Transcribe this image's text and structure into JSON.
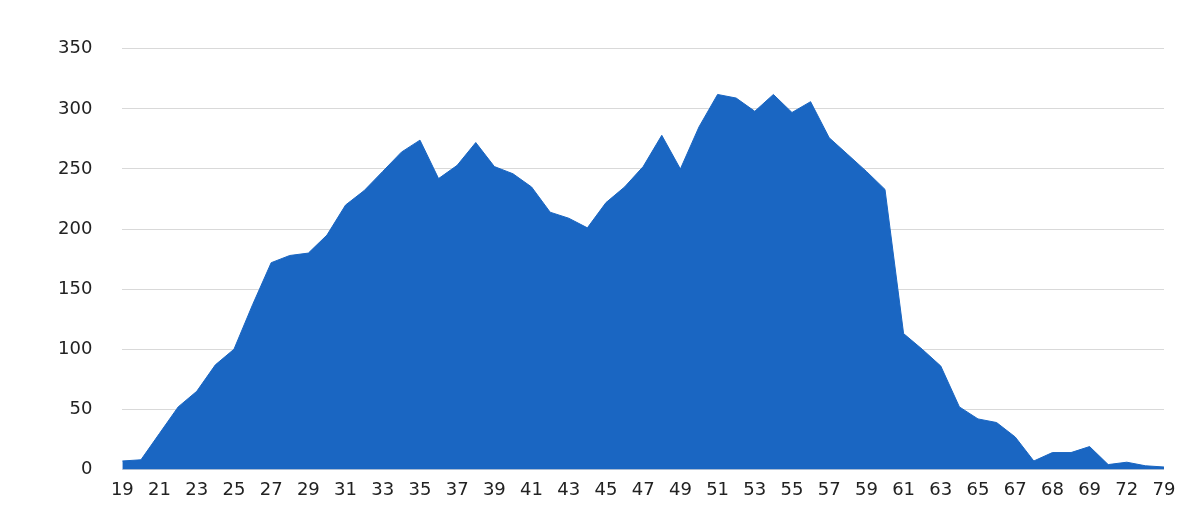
{
  "chart_data": {
    "type": "area",
    "categories": [
      "19",
      null,
      "21",
      null,
      "23",
      null,
      "25",
      null,
      "27",
      null,
      "29",
      null,
      "31",
      null,
      "33",
      null,
      "35",
      null,
      "37",
      null,
      "39",
      null,
      "41",
      null,
      "43",
      null,
      "45",
      null,
      "47",
      null,
      "49",
      null,
      "51",
      null,
      "53",
      null,
      "55",
      null,
      "57",
      null,
      "59",
      null,
      "61",
      null,
      "63",
      null,
      "65",
      null,
      "67",
      null,
      "68",
      null,
      "69",
      null,
      "72",
      null,
      "79"
    ],
    "values": [
      7,
      8,
      30,
      52,
      65,
      87,
      100,
      137,
      172,
      178,
      180,
      195,
      220,
      232,
      248,
      264,
      274,
      242,
      253,
      272,
      252,
      246,
      235,
      214,
      209,
      201,
      222,
      235,
      252,
      278,
      250,
      285,
      312,
      309,
      298,
      312,
      297,
      306,
      276,
      262,
      248,
      233,
      113,
      100,
      86,
      52,
      42,
      39,
      27,
      7,
      14,
      14,
      19,
      4,
      6,
      3,
      2
    ],
    "color": "#1a66c2",
    "ylim": [
      0,
      350
    ],
    "yticks": [
      0,
      50,
      100,
      150,
      200,
      250,
      300,
      350
    ],
    "grid": "y"
  }
}
